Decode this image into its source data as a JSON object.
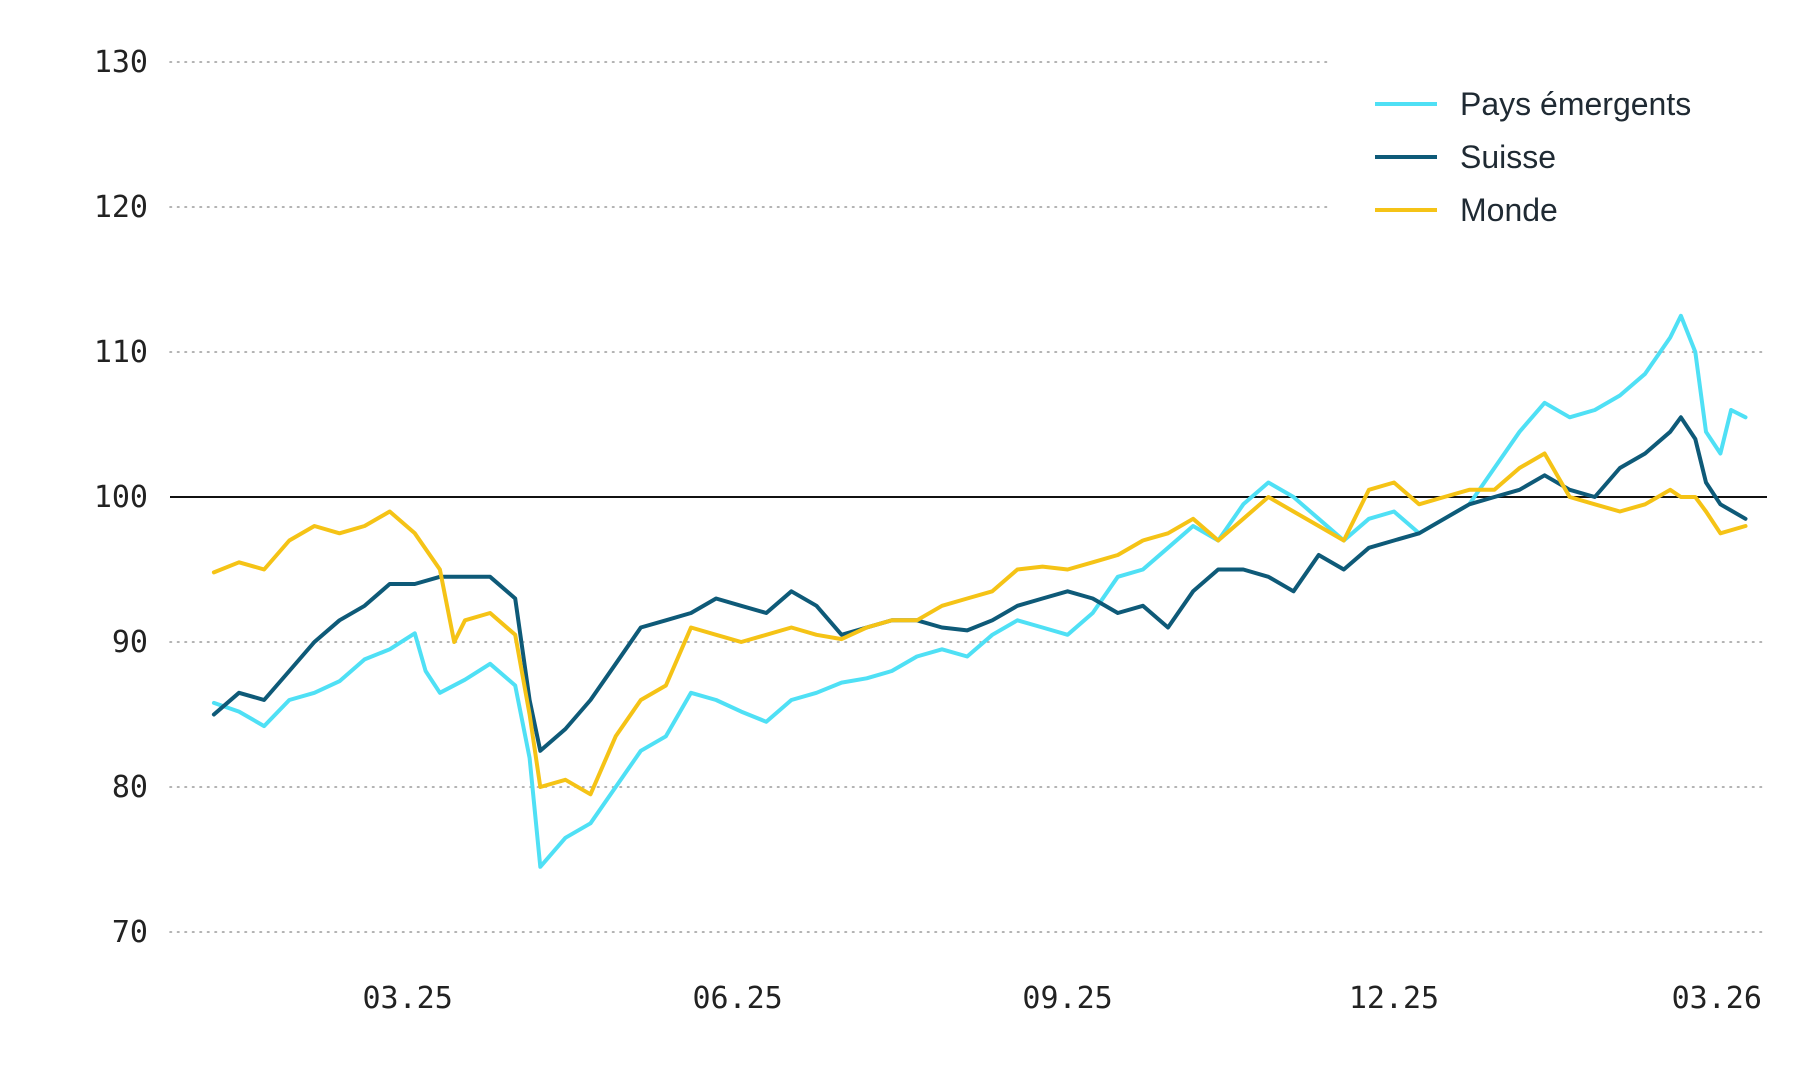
{
  "chart_data": {
    "type": "line",
    "ylim": [
      70,
      130
    ],
    "yticks": [
      70,
      80,
      90,
      100,
      110,
      120,
      130
    ],
    "xlim": [
      "2025-01-01",
      "2026-03-15"
    ],
    "xticks": [
      {
        "date": "2025-03-01",
        "label": "03.25"
      },
      {
        "date": "2025-06-01",
        "label": "06.25"
      },
      {
        "date": "2025-09-01",
        "label": "09.25"
      },
      {
        "date": "2025-12-01",
        "label": "12.25"
      },
      {
        "date": "2026-03-01",
        "label": "03.26"
      }
    ],
    "reference_line": 100,
    "grid": "horizontal-dotted",
    "legend_position": "top-right",
    "series": [
      {
        "name": "Pays émergents",
        "color": "#4fe0f5",
        "points": [
          [
            "2025-01-06",
            85.8
          ],
          [
            "2025-01-13",
            85.2
          ],
          [
            "2025-01-20",
            84.2
          ],
          [
            "2025-01-27",
            86.0
          ],
          [
            "2025-02-03",
            86.5
          ],
          [
            "2025-02-10",
            87.3
          ],
          [
            "2025-02-17",
            88.8
          ],
          [
            "2025-02-24",
            89.5
          ],
          [
            "2025-03-03",
            90.6
          ],
          [
            "2025-03-06",
            88.0
          ],
          [
            "2025-03-10",
            86.5
          ],
          [
            "2025-03-17",
            87.4
          ],
          [
            "2025-03-24",
            88.5
          ],
          [
            "2025-03-31",
            87.0
          ],
          [
            "2025-04-04",
            82.0
          ],
          [
            "2025-04-07",
            74.5
          ],
          [
            "2025-04-14",
            76.5
          ],
          [
            "2025-04-21",
            77.5
          ],
          [
            "2025-04-28",
            80.0
          ],
          [
            "2025-05-05",
            82.5
          ],
          [
            "2025-05-12",
            83.5
          ],
          [
            "2025-05-19",
            86.5
          ],
          [
            "2025-05-26",
            86.0
          ],
          [
            "2025-06-02",
            85.2
          ],
          [
            "2025-06-09",
            84.5
          ],
          [
            "2025-06-16",
            86.0
          ],
          [
            "2025-06-23",
            86.5
          ],
          [
            "2025-06-30",
            87.2
          ],
          [
            "2025-07-07",
            87.5
          ],
          [
            "2025-07-14",
            88.0
          ],
          [
            "2025-07-21",
            89.0
          ],
          [
            "2025-07-28",
            89.5
          ],
          [
            "2025-08-04",
            89.0
          ],
          [
            "2025-08-11",
            90.5
          ],
          [
            "2025-08-18",
            91.5
          ],
          [
            "2025-08-25",
            91.0
          ],
          [
            "2025-09-01",
            90.5
          ],
          [
            "2025-09-08",
            92.0
          ],
          [
            "2025-09-15",
            94.5
          ],
          [
            "2025-09-22",
            95.0
          ],
          [
            "2025-09-29",
            96.5
          ],
          [
            "2025-10-06",
            98.0
          ],
          [
            "2025-10-13",
            97.0
          ],
          [
            "2025-10-20",
            99.5
          ],
          [
            "2025-10-27",
            101.0
          ],
          [
            "2025-11-03",
            100.0
          ],
          [
            "2025-11-10",
            98.5
          ],
          [
            "2025-11-17",
            97.0
          ],
          [
            "2025-11-24",
            98.5
          ],
          [
            "2025-12-01",
            99.0
          ],
          [
            "2025-12-08",
            97.5
          ],
          [
            "2025-12-15",
            98.5
          ],
          [
            "2025-12-22",
            99.5
          ],
          [
            "2025-12-29",
            102.0
          ],
          [
            "2026-01-05",
            104.5
          ],
          [
            "2026-01-12",
            106.5
          ],
          [
            "2026-01-19",
            105.5
          ],
          [
            "2026-01-26",
            106.0
          ],
          [
            "2026-02-02",
            107.0
          ],
          [
            "2026-02-09",
            108.5
          ],
          [
            "2026-02-16",
            111.0
          ],
          [
            "2026-02-19",
            112.5
          ],
          [
            "2026-02-23",
            110.0
          ],
          [
            "2026-02-26",
            104.5
          ],
          [
            "2026-03-02",
            103.0
          ],
          [
            "2026-03-05",
            106.0
          ],
          [
            "2026-03-09",
            105.5
          ]
        ]
      },
      {
        "name": "Suisse",
        "color": "#0e5a78",
        "points": [
          [
            "2025-01-06",
            85.0
          ],
          [
            "2025-01-13",
            86.5
          ],
          [
            "2025-01-20",
            86.0
          ],
          [
            "2025-01-27",
            88.0
          ],
          [
            "2025-02-03",
            90.0
          ],
          [
            "2025-02-10",
            91.5
          ],
          [
            "2025-02-17",
            92.5
          ],
          [
            "2025-02-24",
            94.0
          ],
          [
            "2025-03-03",
            94.0
          ],
          [
            "2025-03-10",
            94.5
          ],
          [
            "2025-03-17",
            94.5
          ],
          [
            "2025-03-24",
            94.5
          ],
          [
            "2025-03-31",
            93.0
          ],
          [
            "2025-04-04",
            86.0
          ],
          [
            "2025-04-07",
            82.5
          ],
          [
            "2025-04-14",
            84.0
          ],
          [
            "2025-04-21",
            86.0
          ],
          [
            "2025-04-28",
            88.5
          ],
          [
            "2025-05-05",
            91.0
          ],
          [
            "2025-05-12",
            91.5
          ],
          [
            "2025-05-19",
            92.0
          ],
          [
            "2025-05-26",
            93.0
          ],
          [
            "2025-06-02",
            92.5
          ],
          [
            "2025-06-09",
            92.0
          ],
          [
            "2025-06-16",
            93.5
          ],
          [
            "2025-06-23",
            92.5
          ],
          [
            "2025-06-30",
            90.5
          ],
          [
            "2025-07-07",
            91.0
          ],
          [
            "2025-07-14",
            91.5
          ],
          [
            "2025-07-21",
            91.5
          ],
          [
            "2025-07-28",
            91.0
          ],
          [
            "2025-08-04",
            90.8
          ],
          [
            "2025-08-11",
            91.5
          ],
          [
            "2025-08-18",
            92.5
          ],
          [
            "2025-08-25",
            93.0
          ],
          [
            "2025-09-01",
            93.5
          ],
          [
            "2025-09-08",
            93.0
          ],
          [
            "2025-09-15",
            92.0
          ],
          [
            "2025-09-22",
            92.5
          ],
          [
            "2025-09-29",
            91.0
          ],
          [
            "2025-10-06",
            93.5
          ],
          [
            "2025-10-13",
            95.0
          ],
          [
            "2025-10-20",
            95.0
          ],
          [
            "2025-10-27",
            94.5
          ],
          [
            "2025-11-03",
            93.5
          ],
          [
            "2025-11-10",
            96.0
          ],
          [
            "2025-11-17",
            95.0
          ],
          [
            "2025-11-24",
            96.5
          ],
          [
            "2025-12-01",
            97.0
          ],
          [
            "2025-12-08",
            97.5
          ],
          [
            "2025-12-15",
            98.5
          ],
          [
            "2025-12-22",
            99.5
          ],
          [
            "2025-12-29",
            100.0
          ],
          [
            "2026-01-05",
            100.5
          ],
          [
            "2026-01-12",
            101.5
          ],
          [
            "2026-01-19",
            100.5
          ],
          [
            "2026-01-26",
            100.0
          ],
          [
            "2026-02-02",
            102.0
          ],
          [
            "2026-02-09",
            103.0
          ],
          [
            "2026-02-16",
            104.5
          ],
          [
            "2026-02-19",
            105.5
          ],
          [
            "2026-02-23",
            104.0
          ],
          [
            "2026-02-26",
            101.0
          ],
          [
            "2026-03-02",
            99.5
          ],
          [
            "2026-03-09",
            98.5
          ]
        ]
      },
      {
        "name": "Monde",
        "color": "#f5c316",
        "points": [
          [
            "2025-01-06",
            94.8
          ],
          [
            "2025-01-13",
            95.5
          ],
          [
            "2025-01-20",
            95.0
          ],
          [
            "2025-01-27",
            97.0
          ],
          [
            "2025-02-03",
            98.0
          ],
          [
            "2025-02-10",
            97.5
          ],
          [
            "2025-02-17",
            98.0
          ],
          [
            "2025-02-24",
            99.0
          ],
          [
            "2025-03-03",
            97.5
          ],
          [
            "2025-03-10",
            95.0
          ],
          [
            "2025-03-14",
            90.0
          ],
          [
            "2025-03-17",
            91.5
          ],
          [
            "2025-03-24",
            92.0
          ],
          [
            "2025-03-31",
            90.5
          ],
          [
            "2025-04-04",
            85.0
          ],
          [
            "2025-04-07",
            80.0
          ],
          [
            "2025-04-14",
            80.5
          ],
          [
            "2025-04-21",
            79.5
          ],
          [
            "2025-04-28",
            83.5
          ],
          [
            "2025-05-05",
            86.0
          ],
          [
            "2025-05-12",
            87.0
          ],
          [
            "2025-05-19",
            91.0
          ],
          [
            "2025-05-26",
            90.5
          ],
          [
            "2025-06-02",
            90.0
          ],
          [
            "2025-06-09",
            90.5
          ],
          [
            "2025-06-16",
            91.0
          ],
          [
            "2025-06-23",
            90.5
          ],
          [
            "2025-06-30",
            90.2
          ],
          [
            "2025-07-07",
            91.0
          ],
          [
            "2025-07-14",
            91.5
          ],
          [
            "2025-07-21",
            91.5
          ],
          [
            "2025-07-28",
            92.5
          ],
          [
            "2025-08-04",
            93.0
          ],
          [
            "2025-08-11",
            93.5
          ],
          [
            "2025-08-18",
            95.0
          ],
          [
            "2025-08-25",
            95.2
          ],
          [
            "2025-09-01",
            95.0
          ],
          [
            "2025-09-08",
            95.5
          ],
          [
            "2025-09-15",
            96.0
          ],
          [
            "2025-09-22",
            97.0
          ],
          [
            "2025-09-29",
            97.5
          ],
          [
            "2025-10-06",
            98.5
          ],
          [
            "2025-10-13",
            97.0
          ],
          [
            "2025-10-20",
            98.5
          ],
          [
            "2025-10-27",
            100.0
          ],
          [
            "2025-11-03",
            99.0
          ],
          [
            "2025-11-10",
            98.0
          ],
          [
            "2025-11-17",
            97.0
          ],
          [
            "2025-11-24",
            100.5
          ],
          [
            "2025-12-01",
            101.0
          ],
          [
            "2025-12-08",
            99.5
          ],
          [
            "2025-12-15",
            100.0
          ],
          [
            "2025-12-22",
            100.5
          ],
          [
            "2025-12-29",
            100.5
          ],
          [
            "2026-01-05",
            102.0
          ],
          [
            "2026-01-12",
            103.0
          ],
          [
            "2026-01-19",
            100.0
          ],
          [
            "2026-01-26",
            99.5
          ],
          [
            "2026-02-02",
            99.0
          ],
          [
            "2026-02-09",
            99.5
          ],
          [
            "2026-02-16",
            100.5
          ],
          [
            "2026-02-19",
            100.0
          ],
          [
            "2026-02-23",
            100.0
          ],
          [
            "2026-02-26",
            99.0
          ],
          [
            "2026-03-02",
            97.5
          ],
          [
            "2026-03-09",
            98.0
          ]
        ]
      }
    ]
  }
}
